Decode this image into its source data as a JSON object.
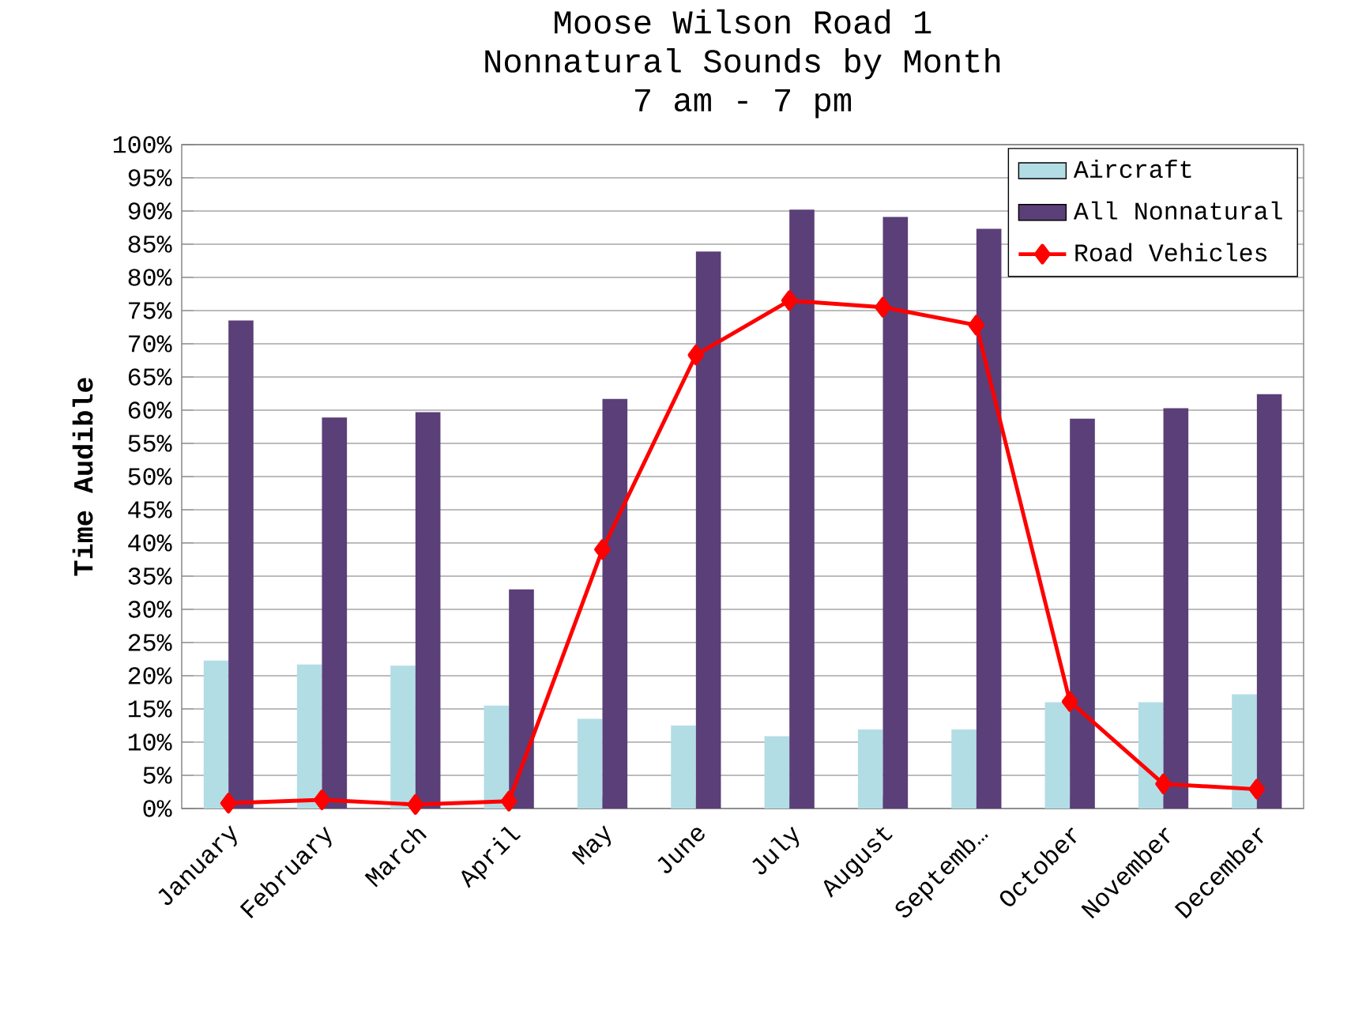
{
  "chart_data": {
    "type": "bar",
    "title": "Moose Wilson Road 1\nNonnatural Sounds by Month\n7 am - 7 pm",
    "ylabel": "Time Audible",
    "categories": [
      "January",
      "February",
      "March",
      "April",
      "May",
      "June",
      "July",
      "August",
      "Septemb…",
      "October",
      "November",
      "December"
    ],
    "series": [
      {
        "name": "Aircraft",
        "color": "#b3dde5",
        "values": [
          22.3,
          21.7,
          21.5,
          15.5,
          13.5,
          12.5,
          10.9,
          11.9,
          11.9,
          16.0,
          16.0,
          17.2
        ]
      },
      {
        "name": "All Nonnatural",
        "color": "#5b3f78",
        "values": [
          73.5,
          58.9,
          59.7,
          33.0,
          61.7,
          83.9,
          90.2,
          89.1,
          87.3,
          58.7,
          60.3,
          62.4
        ]
      },
      {
        "name": "Road Vehicles",
        "type": "line",
        "color": "#ff0000",
        "marker": "diamond",
        "values": [
          0.8,
          1.3,
          0.6,
          1.1,
          39.0,
          68.3,
          76.5,
          75.5,
          72.8,
          16.1,
          3.7,
          2.9
        ]
      }
    ],
    "ylim": [
      0,
      100
    ],
    "yticks": [
      {
        "value": 0,
        "label": "0%"
      },
      {
        "value": 5,
        "label": "5%"
      },
      {
        "value": 10,
        "label": "10%"
      },
      {
        "value": 15,
        "label": "15%"
      },
      {
        "value": 20,
        "label": "20%"
      },
      {
        "value": 25,
        "label": "25%"
      },
      {
        "value": 30,
        "label": "30%"
      },
      {
        "value": 35,
        "label": "35%"
      },
      {
        "value": 40,
        "label": "40%"
      },
      {
        "value": 45,
        "label": "45%"
      },
      {
        "value": 50,
        "label": "50%"
      },
      {
        "value": 55,
        "label": "55%"
      },
      {
        "value": 60,
        "label": "60%"
      },
      {
        "value": 65,
        "label": "65%"
      },
      {
        "value": 70,
        "label": "70%"
      },
      {
        "value": 75,
        "label": "75%"
      },
      {
        "value": 80,
        "label": "80%"
      },
      {
        "value": 85,
        "label": "85%"
      },
      {
        "value": 90,
        "label": "90%"
      },
      {
        "value": 95,
        "label": "95%"
      },
      {
        "value": 100,
        "label": "100%"
      }
    ],
    "grid": "y",
    "legend": "top right"
  }
}
